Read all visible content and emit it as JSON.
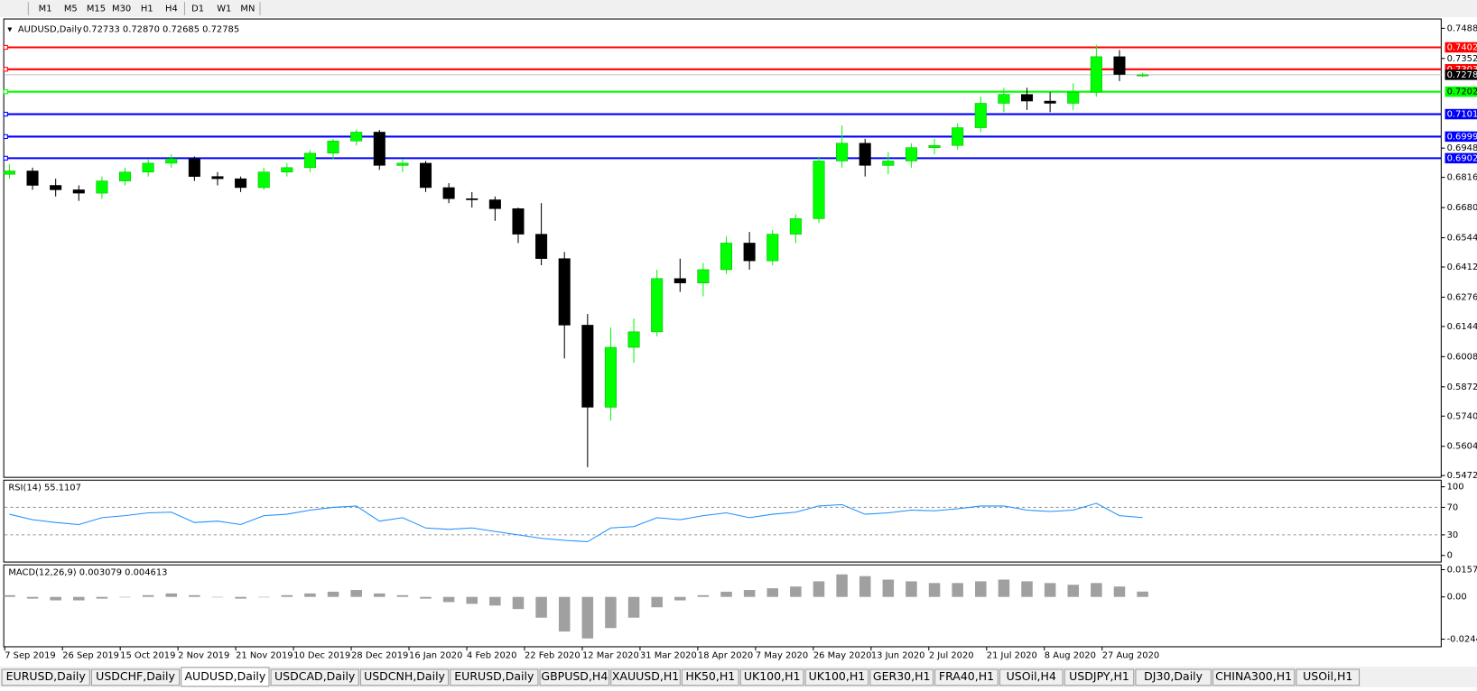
{
  "toolbar": {
    "timeframes": [
      "M1",
      "M5",
      "M15",
      "M30",
      "H1",
      "H4",
      "D1",
      "W1",
      "MN"
    ]
  },
  "chart_data": [
    {
      "type": "candlestick",
      "title": "AUDUSD,Daily",
      "subtitle": "0.72733 0.72870 0.72685 0.72785",
      "x_labels": [
        "7 Sep 2019",
        "26 Sep 2019",
        "15 Oct 2019",
        "2 Nov 2019",
        "21 Nov 2019",
        "10 Dec 2019",
        "28 Dec 2019",
        "16 Jan 2020",
        "4 Feb 2020",
        "22 Feb 2020",
        "12 Mar 2020",
        "31 Mar 2020",
        "18 Apr 2020",
        "7 May 2020",
        "26 May 2020",
        "13 Jun 2020",
        "2 Jul 2020",
        "21 Jul 2020",
        "8 Aug 2020",
        "27 Aug 2020"
      ],
      "ohlc": [
        [
          0.683,
          0.6875,
          0.681,
          0.6845
        ],
        [
          0.6845,
          0.686,
          0.676,
          0.678
        ],
        [
          0.678,
          0.681,
          0.673,
          0.676
        ],
        [
          0.676,
          0.678,
          0.671,
          0.6745
        ],
        [
          0.6745,
          0.682,
          0.672,
          0.68
        ],
        [
          0.68,
          0.686,
          0.678,
          0.684
        ],
        [
          0.684,
          0.69,
          0.682,
          0.688
        ],
        [
          0.688,
          0.692,
          0.686,
          0.69
        ],
        [
          0.69,
          0.691,
          0.68,
          0.682
        ],
        [
          0.682,
          0.684,
          0.678,
          0.681
        ],
        [
          0.681,
          0.682,
          0.675,
          0.677
        ],
        [
          0.677,
          0.686,
          0.676,
          0.684
        ],
        [
          0.684,
          0.688,
          0.682,
          0.686
        ],
        [
          0.686,
          0.694,
          0.684,
          0.6925
        ],
        [
          0.6925,
          0.699,
          0.69,
          0.698
        ],
        [
          0.698,
          0.7032,
          0.696,
          0.702
        ],
        [
          0.702,
          0.703,
          0.685,
          0.687
        ],
        [
          0.687,
          0.69,
          0.684,
          0.688
        ],
        [
          0.688,
          0.689,
          0.675,
          0.677
        ],
        [
          0.677,
          0.679,
          0.67,
          0.672
        ],
        [
          0.672,
          0.675,
          0.668,
          0.6715
        ],
        [
          0.6715,
          0.673,
          0.662,
          0.6675
        ],
        [
          0.6675,
          0.668,
          0.652,
          0.656
        ],
        [
          0.656,
          0.67,
          0.642,
          0.645
        ],
        [
          0.645,
          0.648,
          0.6,
          0.615
        ],
        [
          0.615,
          0.62,
          0.551,
          0.578
        ],
        [
          0.578,
          0.614,
          0.572,
          0.605
        ],
        [
          0.605,
          0.618,
          0.598,
          0.612
        ],
        [
          0.612,
          0.64,
          0.61,
          0.636
        ],
        [
          0.636,
          0.645,
          0.63,
          0.634
        ],
        [
          0.634,
          0.643,
          0.628,
          0.64
        ],
        [
          0.64,
          0.655,
          0.638,
          0.652
        ],
        [
          0.652,
          0.657,
          0.64,
          0.644
        ],
        [
          0.644,
          0.658,
          0.642,
          0.656
        ],
        [
          0.656,
          0.665,
          0.652,
          0.663
        ],
        [
          0.663,
          0.691,
          0.661,
          0.689
        ],
        [
          0.689,
          0.705,
          0.686,
          0.697
        ],
        [
          0.697,
          0.699,
          0.682,
          0.687
        ],
        [
          0.687,
          0.693,
          0.683,
          0.689
        ],
        [
          0.689,
          0.697,
          0.686,
          0.695
        ],
        [
          0.695,
          0.699,
          0.692,
          0.696
        ],
        [
          0.696,
          0.706,
          0.694,
          0.704
        ],
        [
          0.704,
          0.718,
          0.702,
          0.715
        ],
        [
          0.715,
          0.722,
          0.711,
          0.719
        ],
        [
          0.719,
          0.722,
          0.712,
          0.716
        ],
        [
          0.716,
          0.72,
          0.711,
          0.715
        ],
        [
          0.715,
          0.724,
          0.712,
          0.72
        ],
        [
          0.72,
          0.7413,
          0.718,
          0.736
        ],
        [
          0.736,
          0.739,
          0.725,
          0.728
        ],
        [
          0.72733,
          0.7287,
          0.72685,
          0.72785
        ]
      ],
      "up_color": "#00ff00",
      "down_color": "#000000",
      "ylim": [
        0.5464,
        0.753
      ],
      "yticks": [
        {
          "value": 0.7488,
          "label": "0.74880"
        },
        {
          "value": 0.7352,
          "label": "0.73520"
        },
        {
          "value": 0.6948,
          "label": "0.69480"
        },
        {
          "value": 0.6816,
          "label": "0.68160"
        },
        {
          "value": 0.668,
          "label": "0.66800"
        },
        {
          "value": 0.6544,
          "label": "0.65440"
        },
        {
          "value": 0.6412,
          "label": "0.64120"
        },
        {
          "value": 0.6276,
          "label": "0.62760"
        },
        {
          "value": 0.6144,
          "label": "0.61440"
        },
        {
          "value": 0.6008,
          "label": "0.60080"
        },
        {
          "value": 0.5872,
          "label": "0.58720"
        },
        {
          "value": 0.574,
          "label": "0.57400"
        },
        {
          "value": 0.5604,
          "label": "0.56040"
        },
        {
          "value": 0.5472,
          "label": "0.54720"
        }
      ],
      "levels": [
        {
          "value": 0.74021,
          "color": "#ff0000"
        },
        {
          "value": 0.73033,
          "color": "#ff0000"
        },
        {
          "value": 0.72022,
          "color": "#00ff00"
        },
        {
          "value": 0.7101,
          "label": "0.71010",
          "color": "#0000ff"
        },
        {
          "value": 0.69999,
          "color": "#0000ff"
        },
        {
          "value": 0.69025,
          "color": "#0000ff"
        }
      ],
      "current_price": 0.72785
    },
    {
      "type": "line",
      "title": "RSI(14) 55.1107",
      "color": "#1e90ff",
      "values": [
        60,
        52,
        48,
        45,
        55,
        58,
        62,
        63,
        48,
        50,
        45,
        58,
        60,
        66,
        70,
        72,
        50,
        55,
        40,
        38,
        40,
        35,
        30,
        25,
        22,
        20,
        40,
        42,
        55,
        52,
        58,
        62,
        55,
        60,
        63,
        72,
        74,
        60,
        62,
        66,
        65,
        68,
        72,
        72,
        66,
        64,
        66,
        76,
        58,
        55.11
      ],
      "ylim": [
        -9.6,
        109.6
      ],
      "yticks": [
        100,
        70,
        30,
        0
      ],
      "levels": [
        70,
        30
      ]
    },
    {
      "type": "bar",
      "title": "MACD(12,26,9) 0.003079 0.004613",
      "color": "#a0a0a0",
      "values": [
        0.001,
        -0.001,
        -0.002,
        -0.002,
        -0.001,
        0,
        0.001,
        0.002,
        0.001,
        0,
        -0.001,
        0,
        0.001,
        0.002,
        0.003,
        0.004,
        0.002,
        0.001,
        -0.001,
        -0.003,
        -0.004,
        -0.005,
        -0.007,
        -0.012,
        -0.02,
        -0.024,
        -0.018,
        -0.012,
        -0.006,
        -0.002,
        0.001,
        0.003,
        0.004,
        0.005,
        0.006,
        0.009,
        0.013,
        0.012,
        0.01,
        0.009,
        0.008,
        0.008,
        0.009,
        0.01,
        0.009,
        0.008,
        0.007,
        0.008,
        0.006,
        0.003079
      ],
      "ylim": [
        -0.0288,
        0.0185
      ],
      "yticks": [
        0.01574,
        {
          "value": 0,
          "label": "0.00"
        },
        -0.02441
      ]
    }
  ],
  "tabs": {
    "items": [
      "EURUSD,Daily",
      "USDCHF,Daily",
      "AUDUSD,Daily",
      "USDCAD,Daily",
      "USDCNH,Daily",
      "EURUSD,Daily",
      "GBPUSD,H4",
      "XAUUSD,H1",
      "HK50,H1",
      "UK100,H1",
      "UK100,H1",
      "GER30,H1",
      "FRA40,H1",
      "USOil,H4",
      "USDJPY,H1",
      "DJ30,Daily",
      "CHINA300,H1",
      "USOil,H1"
    ],
    "active": 2
  }
}
